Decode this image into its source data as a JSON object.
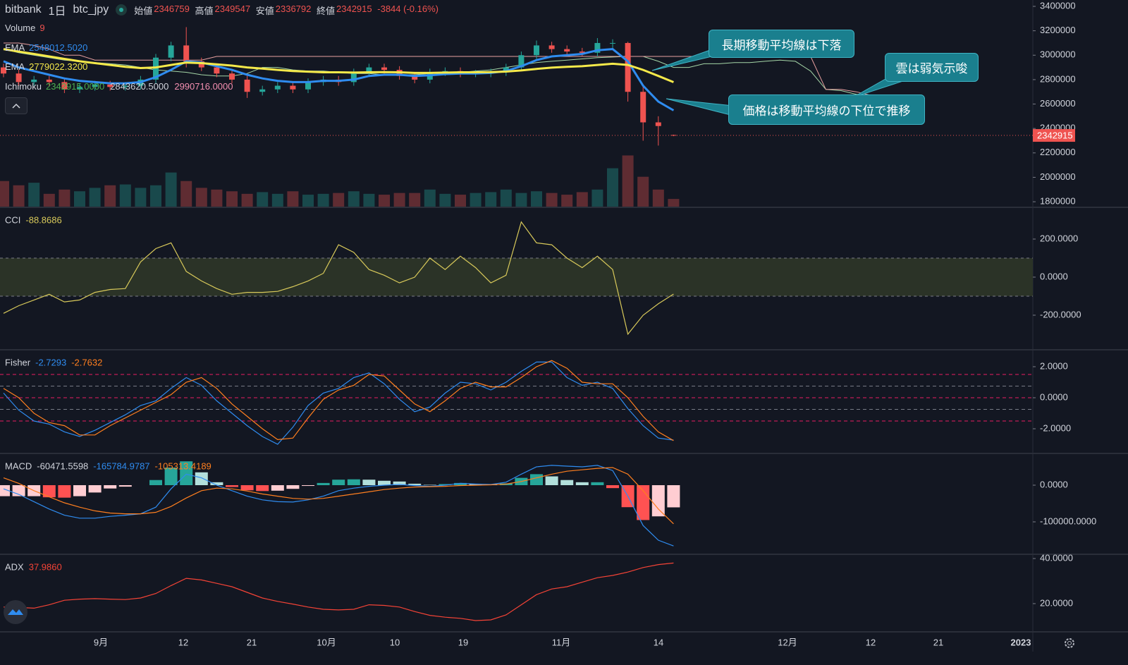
{
  "chart_data": [
    {
      "type": "candlestick",
      "title": "bitbank",
      "interval": "1日",
      "symbol": "btc_jpy",
      "legend_open": "始値",
      "legend_high": "高値",
      "legend_low": "安値",
      "legend_close": "終値",
      "change": "-3844 (-0.16%)",
      "up_color": "#26a69a",
      "down_color": "#ef5350",
      "open": [
        2900000,
        2850000,
        2780000,
        2800000,
        2780000,
        2720000,
        2740000,
        2760000,
        2740000,
        2750000,
        2800000,
        2980000,
        3080000,
        2950000,
        2900000,
        2850000,
        2800000,
        2700000,
        2720000,
        2750000,
        2720000,
        2780000,
        2800000,
        2780000,
        2860000,
        2900000,
        2880000,
        2830000,
        2800000,
        2860000,
        2870000,
        2850000,
        2850000,
        2860000,
        2900000,
        3000000,
        3080000,
        3050000,
        3030000,
        3020000,
        3100000,
        3100000,
        2700000,
        2450000,
        2346759
      ],
      "high": [
        2930000,
        2880000,
        2830000,
        2830000,
        2810000,
        2770000,
        2790000,
        2790000,
        2780000,
        2830000,
        3010000,
        3110000,
        3230000,
        2980000,
        2930000,
        2880000,
        2830000,
        2750000,
        2780000,
        2780000,
        2810000,
        2830000,
        2830000,
        2890000,
        2930000,
        2930000,
        2910000,
        2860000,
        2890000,
        2900000,
        2900000,
        2880000,
        2890000,
        2930000,
        3030000,
        3120000,
        3110000,
        3080000,
        3060000,
        3140000,
        3130000,
        3110000,
        2760000,
        2500000,
        2349547
      ],
      "low": [
        2820000,
        2750000,
        2750000,
        2750000,
        2690000,
        2690000,
        2710000,
        2710000,
        2710000,
        2720000,
        2770000,
        2950000,
        2900000,
        2870000,
        2820000,
        2770000,
        2650000,
        2670000,
        2690000,
        2690000,
        2690000,
        2750000,
        2750000,
        2750000,
        2830000,
        2850000,
        2800000,
        2770000,
        2770000,
        2830000,
        2820000,
        2820000,
        2820000,
        2830000,
        2870000,
        2970000,
        3020000,
        3000000,
        2990000,
        2990000,
        3060000,
        2620000,
        2300000,
        2260000,
        2336792
      ],
      "close": [
        2850000,
        2780000,
        2800000,
        2780000,
        2720000,
        2740000,
        2760000,
        2740000,
        2750000,
        2800000,
        2980000,
        3080000,
        2950000,
        2900000,
        2850000,
        2800000,
        2700000,
        2720000,
        2750000,
        2720000,
        2780000,
        2800000,
        2780000,
        2860000,
        2900000,
        2880000,
        2830000,
        2800000,
        2860000,
        2870000,
        2850000,
        2850000,
        2860000,
        2900000,
        3000000,
        3080000,
        3050000,
        3030000,
        3020000,
        3100000,
        3100000,
        2700000,
        2450000,
        2420000,
        2342915
      ],
      "ylim": [
        1760000,
        3452000
      ],
      "yticks": [
        1800000,
        2000000,
        2200000,
        2400000,
        2600000,
        2800000,
        3000000,
        3200000,
        3400000
      ],
      "volume": {
        "name": "Volume",
        "ylim": [
          0,
          62
        ],
        "values": [
          30,
          25,
          28,
          15,
          20,
          18,
          22,
          25,
          26,
          22,
          25,
          40,
          30,
          22,
          20,
          18,
          15,
          17,
          15,
          18,
          14,
          15,
          16,
          18,
          15,
          14,
          16,
          16,
          20,
          15,
          14,
          16,
          17,
          20,
          16,
          18,
          16,
          14,
          17,
          20,
          45,
          60,
          35,
          20,
          9
        ]
      },
      "ema": [
        {
          "name": "EMA",
          "color": "#2f8cf0",
          "value_label": "2548012.5020",
          "values": [
            2950000,
            2900000,
            2870000,
            2840000,
            2810000,
            2790000,
            2780000,
            2770000,
            2770000,
            2780000,
            2820000,
            2880000,
            2950000,
            2940000,
            2910000,
            2880000,
            2840000,
            2810000,
            2790000,
            2780000,
            2780000,
            2790000,
            2790000,
            2800000,
            2830000,
            2840000,
            2840000,
            2830000,
            2835000,
            2845000,
            2850000,
            2850000,
            2855000,
            2870000,
            2910000,
            2960000,
            2990000,
            3000000,
            3010000,
            3040000,
            3050000,
            2950000,
            2750000,
            2620000,
            2548012.502
          ]
        },
        {
          "name": "EMA",
          "color": "#f5e94a",
          "value_label": "2779022.3200",
          "values": [
            3050000,
            3030000,
            3010000,
            2990000,
            2970000,
            2950000,
            2935000,
            2920000,
            2905000,
            2895000,
            2900000,
            2920000,
            2940000,
            2935000,
            2925000,
            2915000,
            2900000,
            2890000,
            2880000,
            2870000,
            2865000,
            2860000,
            2860000,
            2858000,
            2860000,
            2862000,
            2860000,
            2855000,
            2855000,
            2858000,
            2860000,
            2860000,
            2862000,
            2866000,
            2875000,
            2888000,
            2898000,
            2905000,
            2910000,
            2920000,
            2930000,
            2920000,
            2880000,
            2830000,
            2779022.32
          ]
        }
      ],
      "ichimoku": {
        "name": "Ichimoku",
        "legend_labels": [
          "2342915.0000",
          "2843620.5000",
          "2990716.0000"
        ],
        "legend_colors": [
          "#4caf50",
          "#d1d4dc",
          "#f48fb1"
        ],
        "span_a": {
          "color": "#a5d6a7",
          "values": [
            3050000,
            3020000,
            3000000,
            2980000,
            2960000,
            2950000,
            2940000,
            2930000,
            2920000,
            2900000,
            2880000,
            2870000,
            2860000,
            2840000,
            2830000,
            2830000,
            2850000,
            2900000,
            2900000,
            2880000,
            2870000,
            2870000,
            2860000,
            2850000,
            2850000,
            2840000,
            2840000,
            2840000,
            2850000,
            2860000,
            2860000,
            2870000,
            2880000,
            2900000,
            2920000,
            2940000,
            2950000,
            2960000,
            2970000,
            2980000,
            2985000,
            2990000,
            2990000,
            2950000,
            2900000,
            2900000,
            2930000,
            2930000,
            2940000,
            2940000,
            2950000,
            2960000,
            2950000,
            2870000,
            2720000,
            2710000,
            2680000,
            2670000
          ]
        },
        "span_b": {
          "color": "#e8a0a0",
          "values": [
            3100000,
            3100000,
            3080000,
            3050000,
            3000000,
            3000000,
            2960000,
            2960000,
            2960000,
            2960000,
            2960000,
            2960000,
            2960000,
            2960000,
            2990000,
            2990000,
            2990000,
            2990000,
            2990000,
            2990000,
            2990000,
            2990000,
            2990000,
            2990000,
            2990000,
            2990000,
            2990000,
            2990000,
            2990000,
            2990000,
            2990000,
            2990000,
            2990000,
            2990000,
            2990000,
            2990000,
            2990000,
            2990000,
            2990000,
            2990000,
            2990000,
            2990000,
            2990000,
            2990000,
            2990000,
            2990000,
            2990000,
            2990000,
            2990000,
            2990000,
            2990000,
            2990000,
            2990000,
            2990000,
            2720000,
            2720000,
            2700000,
            2670000
          ]
        }
      },
      "annotations": [
        "長期移動平均線は下落",
        "雲は弱気示唆",
        "価格は移動平均線の下位で推移"
      ]
    },
    {
      "type": "line",
      "name": "CCI",
      "ylim": [
        -378,
        363
      ],
      "yticks": [
        {
          "value": 200,
          "label": "200.0000"
        },
        {
          "value": 0,
          "label": "0.0000"
        },
        {
          "value": -200,
          "label": "-200.0000"
        }
      ],
      "band": [
        -100,
        100
      ],
      "series": [
        {
          "color": "#d8c95a",
          "values": [
            -190,
            -150,
            -120,
            -90,
            -130,
            -120,
            -80,
            -65,
            -60,
            80,
            150,
            180,
            30,
            -20,
            -60,
            -90,
            -80,
            -80,
            -75,
            -50,
            -20,
            20,
            170,
            130,
            40,
            10,
            -30,
            0,
            100,
            40,
            110,
            50,
            -30,
            10,
            290,
            180,
            170,
            100,
            50,
            110,
            40,
            -300,
            -200,
            -140,
            -88.8686
          ]
        }
      ]
    },
    {
      "type": "line",
      "name": "Fisher",
      "ylim": [
        -3.545,
        3.045
      ],
      "yticks": [
        {
          "value": 2,
          "label": "2.0000"
        },
        {
          "value": 0,
          "label": "0.0000"
        },
        {
          "value": -2,
          "label": "-2.0000"
        }
      ],
      "levels": [
        1.5,
        0.75,
        0,
        -0.75,
        -1.5
      ],
      "level_colors": [
        "#e91e63",
        "#787b86",
        "#e91e63",
        "#787b86",
        "#e91e63"
      ],
      "series": [
        {
          "color": "#2f8cf0",
          "values": [
            0.3,
            -0.8,
            -1.5,
            -1.7,
            -2.2,
            -2.5,
            -2.1,
            -1.6,
            -1.1,
            -0.5,
            -0.2,
            0.6,
            1.3,
            0.8,
            -0.2,
            -1.0,
            -1.8,
            -2.5,
            -3.0,
            -1.9,
            -0.5,
            0.3,
            0.6,
            1.3,
            1.6,
            0.9,
            -0.1,
            -0.9,
            -0.6,
            0.3,
            1.0,
            0.9,
            0.5,
            1.0,
            1.7,
            2.3,
            2.3,
            1.3,
            0.8,
            1.0,
            0.6,
            -0.7,
            -1.8,
            -2.6,
            -2.7293
          ]
        },
        {
          "color": "#ff7f1f",
          "values": [
            0.6,
            0,
            -1.0,
            -1.6,
            -1.8,
            -2.4,
            -2.4,
            -1.8,
            -1.3,
            -0.8,
            -0.3,
            0.2,
            1.0,
            1.3,
            0.6,
            -0.4,
            -1.2,
            -2.0,
            -2.7,
            -2.6,
            -1.3,
            -0.1,
            0.5,
            0.8,
            1.5,
            1.4,
            0.5,
            -0.4,
            -0.9,
            -0.2,
            0.6,
            1.0,
            0.7,
            0.7,
            1.3,
            2.0,
            2.4,
            1.9,
            1.0,
            0.9,
            0.9,
            0,
            -1.2,
            -2.2,
            -2.7632
          ]
        }
      ]
    },
    {
      "type": "macd",
      "name": "MACD",
      "ylim": [
        -186500,
        84600
      ],
      "yticks": [
        {
          "value": 0,
          "label": "0.0000"
        },
        {
          "value": -100000,
          "label": "-100000.0000"
        }
      ],
      "histogram": {
        "colors": [
          "#26a69a",
          "#b2dfdb",
          "#ff5252",
          "#ffcdd2"
        ],
        "legend_color": "#d1d4dc",
        "values": [
          -30000,
          -30000,
          -30000,
          -33000,
          -34000,
          -30000,
          -20000,
          -9000,
          -4000,
          0,
          14000,
          48000,
          65000,
          35000,
          8000,
          -5000,
          -14000,
          -16000,
          -15000,
          -10000,
          -2000,
          6000,
          15000,
          16000,
          15000,
          12000,
          10000,
          4000,
          1000,
          3000,
          6000,
          3000,
          1000,
          5000,
          20000,
          30000,
          24000,
          14000,
          8000,
          8000,
          -8000,
          -60000,
          -95000,
          -85000,
          -60471.5598
        ]
      },
      "series": [
        {
          "color": "#2f8cf0",
          "values": [
            -10000,
            -25000,
            -45000,
            -65000,
            -82000,
            -90000,
            -90000,
            -85000,
            -82000,
            -78000,
            -60000,
            -10000,
            30000,
            20000,
            0,
            -15000,
            -30000,
            -40000,
            -45000,
            -46000,
            -40000,
            -30000,
            -15000,
            -8000,
            -3000,
            0,
            2000,
            -1000,
            -3000,
            0,
            5000,
            3000,
            2000,
            8000,
            30000,
            50000,
            54000,
            52000,
            50000,
            54000,
            40000,
            -30000,
            -110000,
            -150000,
            -165784.9787
          ]
        },
        {
          "color": "#ff7f1f",
          "values": [
            20000,
            5000,
            -15000,
            -32000,
            -48000,
            -60000,
            -70000,
            -76000,
            -78000,
            -78000,
            -74000,
            -58000,
            -35000,
            -15000,
            -8000,
            -10000,
            -16000,
            -24000,
            -30000,
            -36000,
            -38000,
            -36000,
            -30000,
            -24000,
            -18000,
            -12000,
            -8000,
            -5000,
            -4000,
            -3000,
            -1000,
            0,
            1000,
            3000,
            10000,
            20000,
            30000,
            38000,
            42000,
            46000,
            48000,
            30000,
            -15000,
            -65000,
            -105313.4189
          ]
        }
      ]
    },
    {
      "type": "line",
      "name": "ADX",
      "ylim": [
        7.8,
        41.56
      ],
      "yticks": [
        {
          "value": 40,
          "label": "40.0000"
        },
        {
          "value": 20,
          "label": "20.0000"
        }
      ],
      "series": [
        {
          "color": "#f44336",
          "value_label": "37.9860",
          "values": [
            18.5,
            18.3,
            18.0,
            19.5,
            21.5,
            22.0,
            22.2,
            22.0,
            21.8,
            22.5,
            24.5,
            28.0,
            31.2,
            30.5,
            29.0,
            27.5,
            25.0,
            22.5,
            21.0,
            19.8,
            18.5,
            17.5,
            17.2,
            17.5,
            19.5,
            19.2,
            18.5,
            16.5,
            14.8,
            14.0,
            13.5,
            12.5,
            12.8,
            15.0,
            19.5,
            24.0,
            26.5,
            27.5,
            29.5,
            31.5,
            32.5,
            34.0,
            36.0,
            37.3,
            37.986
          ]
        }
      ]
    }
  ],
  "time_axis": [
    "9月",
    "12",
    "21",
    "10月",
    "10",
    "19",
    "11月",
    "14",
    "12月",
    "12",
    "21",
    "2023"
  ]
}
